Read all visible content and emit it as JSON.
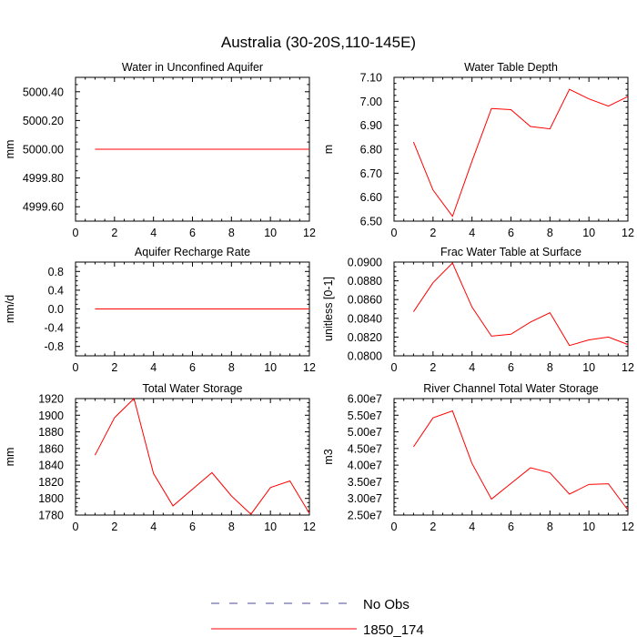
{
  "figure": {
    "title": "Australia (30-20S,110-145E)"
  },
  "legend": {
    "entries": [
      {
        "label": "No Obs",
        "color": "#4b4b9a",
        "dash": true
      },
      {
        "label": "1850_174",
        "color": "#ff0000",
        "dash": false
      }
    ]
  },
  "chart_data": [
    {
      "type": "line",
      "title": "Water in Unconfined Aquifer",
      "ylabel": "mm",
      "xlim": [
        0,
        12
      ],
      "ylim": [
        4999.5,
        5000.5
      ],
      "xticks": [
        0,
        2,
        4,
        6,
        8,
        10,
        12
      ],
      "yticks": [
        4999.6,
        4999.8,
        5000.0,
        5000.2,
        5000.4
      ],
      "ytick_labels": [
        "4999.60",
        "4999.80",
        "5000.00",
        "5000.20",
        "5000.40"
      ],
      "series": [
        {
          "color": "#ff0000",
          "x": [
            1,
            2,
            3,
            4,
            5,
            6,
            7,
            8,
            9,
            10,
            11,
            12
          ],
          "y": [
            5000,
            5000,
            5000,
            5000,
            5000,
            5000,
            5000,
            5000,
            5000,
            5000,
            5000,
            5000
          ]
        }
      ]
    },
    {
      "type": "line",
      "title": "Water Table Depth",
      "ylabel": "m",
      "xlim": [
        0,
        12
      ],
      "ylim": [
        6.5,
        7.1
      ],
      "xticks": [
        0,
        2,
        4,
        6,
        8,
        10,
        12
      ],
      "yticks": [
        6.5,
        6.6,
        6.7,
        6.8,
        6.9,
        7.0,
        7.1
      ],
      "ytick_labels": [
        "6.50",
        "6.60",
        "6.70",
        "6.80",
        "6.90",
        "7.00",
        "7.10"
      ],
      "series": [
        {
          "color": "#ff0000",
          "x": [
            1,
            2,
            3,
            4,
            5,
            6,
            7,
            8,
            9,
            10,
            11,
            12
          ],
          "y": [
            6.83,
            6.63,
            6.52,
            6.75,
            6.97,
            6.965,
            6.895,
            6.885,
            7.05,
            7.01,
            6.98,
            7.02
          ]
        }
      ]
    },
    {
      "type": "line",
      "title": "Aquifer Recharge Rate",
      "ylabel": "mm/d",
      "xlim": [
        0,
        12
      ],
      "ylim": [
        -1.0,
        1.0
      ],
      "xticks": [
        0,
        2,
        4,
        6,
        8,
        10,
        12
      ],
      "yticks": [
        -0.8,
        -0.4,
        0.0,
        0.4,
        0.8
      ],
      "ytick_labels": [
        "-0.8",
        "-0.4",
        "0.0",
        "0.4",
        "0.8"
      ],
      "series": [
        {
          "color": "#ff0000",
          "x": [
            1,
            2,
            3,
            4,
            5,
            6,
            7,
            8,
            9,
            10,
            11,
            12
          ],
          "y": [
            0,
            0,
            0,
            0,
            0,
            0,
            0,
            0,
            0,
            0,
            0,
            0
          ]
        }
      ]
    },
    {
      "type": "line",
      "title": "Frac Water Table at Surface",
      "ylabel": "unitless [0-1]",
      "xlim": [
        0,
        12
      ],
      "ylim": [
        0.08,
        0.09
      ],
      "xticks": [
        0,
        2,
        4,
        6,
        8,
        10,
        12
      ],
      "yticks": [
        0.08,
        0.082,
        0.084,
        0.086,
        0.088,
        0.09
      ],
      "ytick_labels": [
        "0.0800",
        "0.0820",
        "0.0840",
        "0.0860",
        "0.0880",
        "0.0900"
      ],
      "series": [
        {
          "color": "#ff0000",
          "x": [
            1,
            2,
            3,
            4,
            5,
            6,
            7,
            8,
            9,
            10,
            11,
            12
          ],
          "y": [
            0.0847,
            0.0878,
            0.0899,
            0.0852,
            0.0821,
            0.0823,
            0.0836,
            0.0846,
            0.0811,
            0.0817,
            0.082,
            0.0812
          ]
        }
      ]
    },
    {
      "type": "line",
      "title": "Total Water Storage",
      "ylabel": "mm",
      "xlim": [
        0,
        12
      ],
      "ylim": [
        1780,
        1920
      ],
      "xticks": [
        0,
        2,
        4,
        6,
        8,
        10,
        12
      ],
      "yticks": [
        1780,
        1800,
        1820,
        1840,
        1860,
        1880,
        1900,
        1920
      ],
      "ytick_labels": [
        "1780",
        "1800",
        "1820",
        "1840",
        "1860",
        "1880",
        "1900",
        "1920"
      ],
      "series": [
        {
          "color": "#ff0000",
          "x": [
            1,
            2,
            3,
            4,
            5,
            6,
            7,
            8,
            9,
            10,
            11,
            12
          ],
          "y": [
            1852,
            1897,
            1920,
            1830,
            1791,
            1811,
            1831,
            1803,
            1781,
            1813,
            1821,
            1782
          ]
        }
      ]
    },
    {
      "type": "line",
      "title": "River Channel Total Water Storage",
      "ylabel": "m3",
      "xlim": [
        0,
        12
      ],
      "ylim": [
        25000000.0,
        60000000.0
      ],
      "xticks": [
        0,
        2,
        4,
        6,
        8,
        10,
        12
      ],
      "yticks": [
        25000000.0,
        30000000.0,
        35000000.0,
        40000000.0,
        45000000.0,
        50000000.0,
        55000000.0,
        60000000.0
      ],
      "ytick_labels": [
        "2.50e7",
        "3.00e7",
        "3.50e7",
        "4.00e7",
        "4.50e7",
        "5.00e7",
        "5.50e7",
        "6.00e7"
      ],
      "series": [
        {
          "color": "#ff0000",
          "x": [
            1,
            2,
            3,
            4,
            5,
            6,
            7,
            8,
            9,
            10,
            11,
            12
          ],
          "y": [
            45500000.0,
            54200000.0,
            56300000.0,
            40500000.0,
            29800000.0,
            34500000.0,
            39200000.0,
            37700000.0,
            31300000.0,
            34200000.0,
            34400000.0,
            26500000.0
          ]
        }
      ]
    }
  ]
}
